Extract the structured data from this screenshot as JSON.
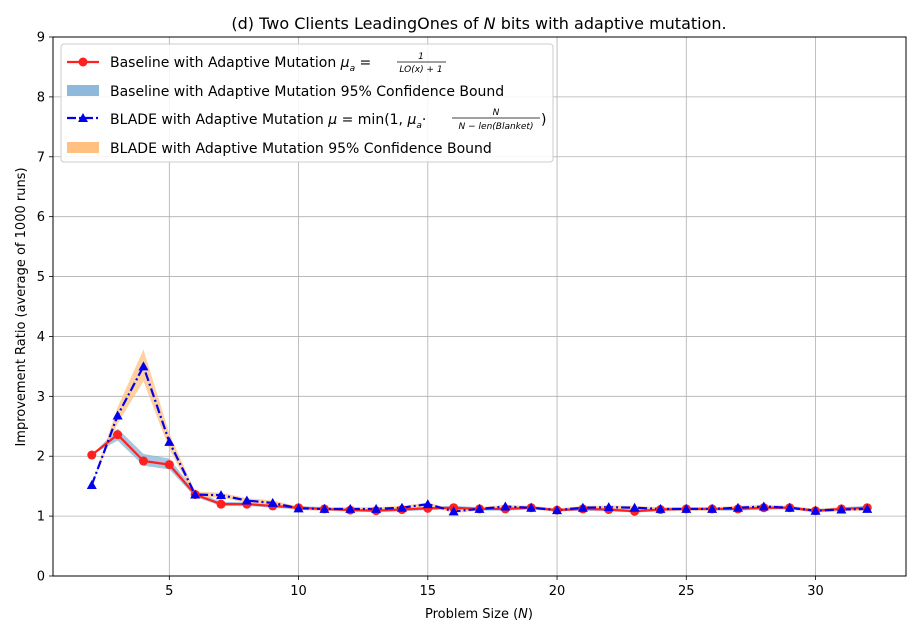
{
  "chart_data": {
    "type": "line",
    "title": "(d) Two Clients LeadingOnes of N bits with adaptive mutation.",
    "title_parts": {
      "prefix": "(d) Two Clients LeadingOnes of ",
      "var": "N",
      "suffix": " bits with adaptive mutation."
    },
    "xlabel": "Problem Size (N)",
    "xlabel_parts": {
      "prefix": "Problem Size (",
      "var": "N",
      "suffix": ")"
    },
    "ylabel": "Improvement Ratio (average of 1000 runs)",
    "xlim": [
      0.5,
      33.5
    ],
    "ylim": [
      0,
      9
    ],
    "xticks": [
      5,
      10,
      15,
      20,
      25,
      30
    ],
    "yticks": [
      0,
      1,
      2,
      3,
      4,
      5,
      6,
      7,
      8,
      9
    ],
    "grid": true,
    "legend_position": "top-left",
    "x": [
      2,
      3,
      4,
      5,
      6,
      7,
      8,
      9,
      10,
      11,
      12,
      13,
      14,
      15,
      16,
      17,
      18,
      19,
      20,
      21,
      22,
      23,
      24,
      25,
      26,
      27,
      28,
      29,
      30,
      31,
      32
    ],
    "series": [
      {
        "name": "Baseline with Adaptive Mutation",
        "color": "#ff2020",
        "marker": "circle",
        "linestyle": "solid",
        "values": [
          2.02,
          2.36,
          1.92,
          1.86,
          1.36,
          1.2,
          1.2,
          1.17,
          1.14,
          1.12,
          1.1,
          1.09,
          1.11,
          1.13,
          1.14,
          1.12,
          1.12,
          1.14,
          1.1,
          1.12,
          1.11,
          1.08,
          1.11,
          1.12,
          1.12,
          1.12,
          1.14,
          1.14,
          1.09,
          1.12,
          1.14
        ],
        "ci_lower": [
          2.02,
          2.26,
          1.84,
          1.78,
          1.32,
          1.17,
          1.17,
          1.14,
          1.11,
          1.09,
          1.08,
          1.07,
          1.08,
          1.1,
          1.11,
          1.09,
          1.09,
          1.11,
          1.08,
          1.09,
          1.08,
          1.06,
          1.08,
          1.09,
          1.09,
          1.09,
          1.11,
          1.11,
          1.06,
          1.09,
          1.11
        ],
        "ci_upper": [
          2.02,
          2.46,
          2.04,
          1.96,
          1.41,
          1.24,
          1.23,
          1.2,
          1.17,
          1.15,
          1.13,
          1.12,
          1.14,
          1.16,
          1.17,
          1.15,
          1.15,
          1.17,
          1.13,
          1.15,
          1.14,
          1.11,
          1.14,
          1.15,
          1.15,
          1.15,
          1.17,
          1.17,
          1.12,
          1.15,
          1.17
        ]
      },
      {
        "name": "BLADE with Adaptive Mutation",
        "color": "#0000ee",
        "marker": "triangle",
        "linestyle": "dashdot",
        "values": [
          1.52,
          2.68,
          3.5,
          2.24,
          1.36,
          1.35,
          1.26,
          1.22,
          1.13,
          1.12,
          1.12,
          1.12,
          1.14,
          1.2,
          1.08,
          1.12,
          1.16,
          1.14,
          1.1,
          1.14,
          1.15,
          1.14,
          1.12,
          1.12,
          1.12,
          1.14,
          1.16,
          1.14,
          1.09,
          1.11,
          1.12
        ],
        "ci_lower": [
          1.52,
          2.55,
          3.25,
          2.12,
          1.31,
          1.31,
          1.22,
          1.18,
          1.1,
          1.09,
          1.09,
          1.09,
          1.11,
          1.17,
          1.05,
          1.09,
          1.13,
          1.11,
          1.07,
          1.11,
          1.12,
          1.11,
          1.09,
          1.09,
          1.09,
          1.11,
          1.13,
          1.11,
          1.06,
          1.08,
          1.09
        ],
        "ci_upper": [
          1.52,
          2.82,
          3.78,
          2.38,
          1.41,
          1.39,
          1.3,
          1.26,
          1.16,
          1.15,
          1.15,
          1.15,
          1.17,
          1.23,
          1.11,
          1.15,
          1.19,
          1.17,
          1.13,
          1.17,
          1.18,
          1.17,
          1.15,
          1.15,
          1.15,
          1.17,
          1.19,
          1.17,
          1.12,
          1.14,
          1.15
        ]
      }
    ],
    "bands": [
      {
        "name": "Baseline with Adaptive Mutation 95% Confidence Bound",
        "color": "#8fb9da"
      },
      {
        "name": "BLADE with Adaptive Mutation 95% Confidence Bound",
        "color": "#ffc080"
      }
    ],
    "legend": [
      {
        "label": "Baseline with Adaptive Mutation ",
        "formula": {
          "lhs": "μ",
          "sub": "a",
          "eq": " = ",
          "num": "1",
          "den": "LO(x) + 1"
        }
      },
      {
        "label": "Baseline with Adaptive Mutation 95% Confidence Bound"
      },
      {
        "label": "BLADE with Adaptive Mutation ",
        "formula": {
          "lhs": "μ",
          "eq": " = min(1, ",
          "mid": "μ",
          "sub": "a",
          "dot": "·",
          "num": "N",
          "den": "N − len(Blanket)",
          "close": ")"
        }
      },
      {
        "label": "BLADE with Adaptive Mutation 95% Confidence Bound"
      }
    ]
  }
}
